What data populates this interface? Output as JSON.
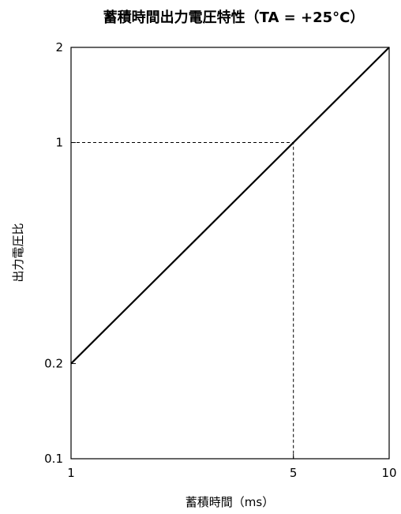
{
  "chart_data": {
    "type": "line",
    "title": "蓄積時間出力電圧特性（TA = +25°C）",
    "xlabel": "蓄積時間（ms）",
    "ylabel": "出力電圧比",
    "x_scale": "log",
    "y_scale": "log",
    "xlim": [
      1,
      10
    ],
    "ylim": [
      0.1,
      2
    ],
    "x_ticks": [
      1,
      5,
      10
    ],
    "x_tick_labels": [
      "1",
      "5",
      "10"
    ],
    "y_ticks": [
      0.1,
      0.2,
      1,
      2
    ],
    "y_tick_labels": [
      "0.1",
      "0.2",
      "1",
      "2"
    ],
    "grid": false,
    "series": [
      {
        "x": [
          1,
          10
        ],
        "y": [
          0.2,
          2
        ],
        "color": "#000000",
        "style": "solid"
      }
    ],
    "reference_lines": [
      {
        "x": [
          1,
          5,
          5
        ],
        "y": [
          1,
          1,
          0.1
        ],
        "style": "dashed",
        "color": "#000000"
      }
    ]
  }
}
